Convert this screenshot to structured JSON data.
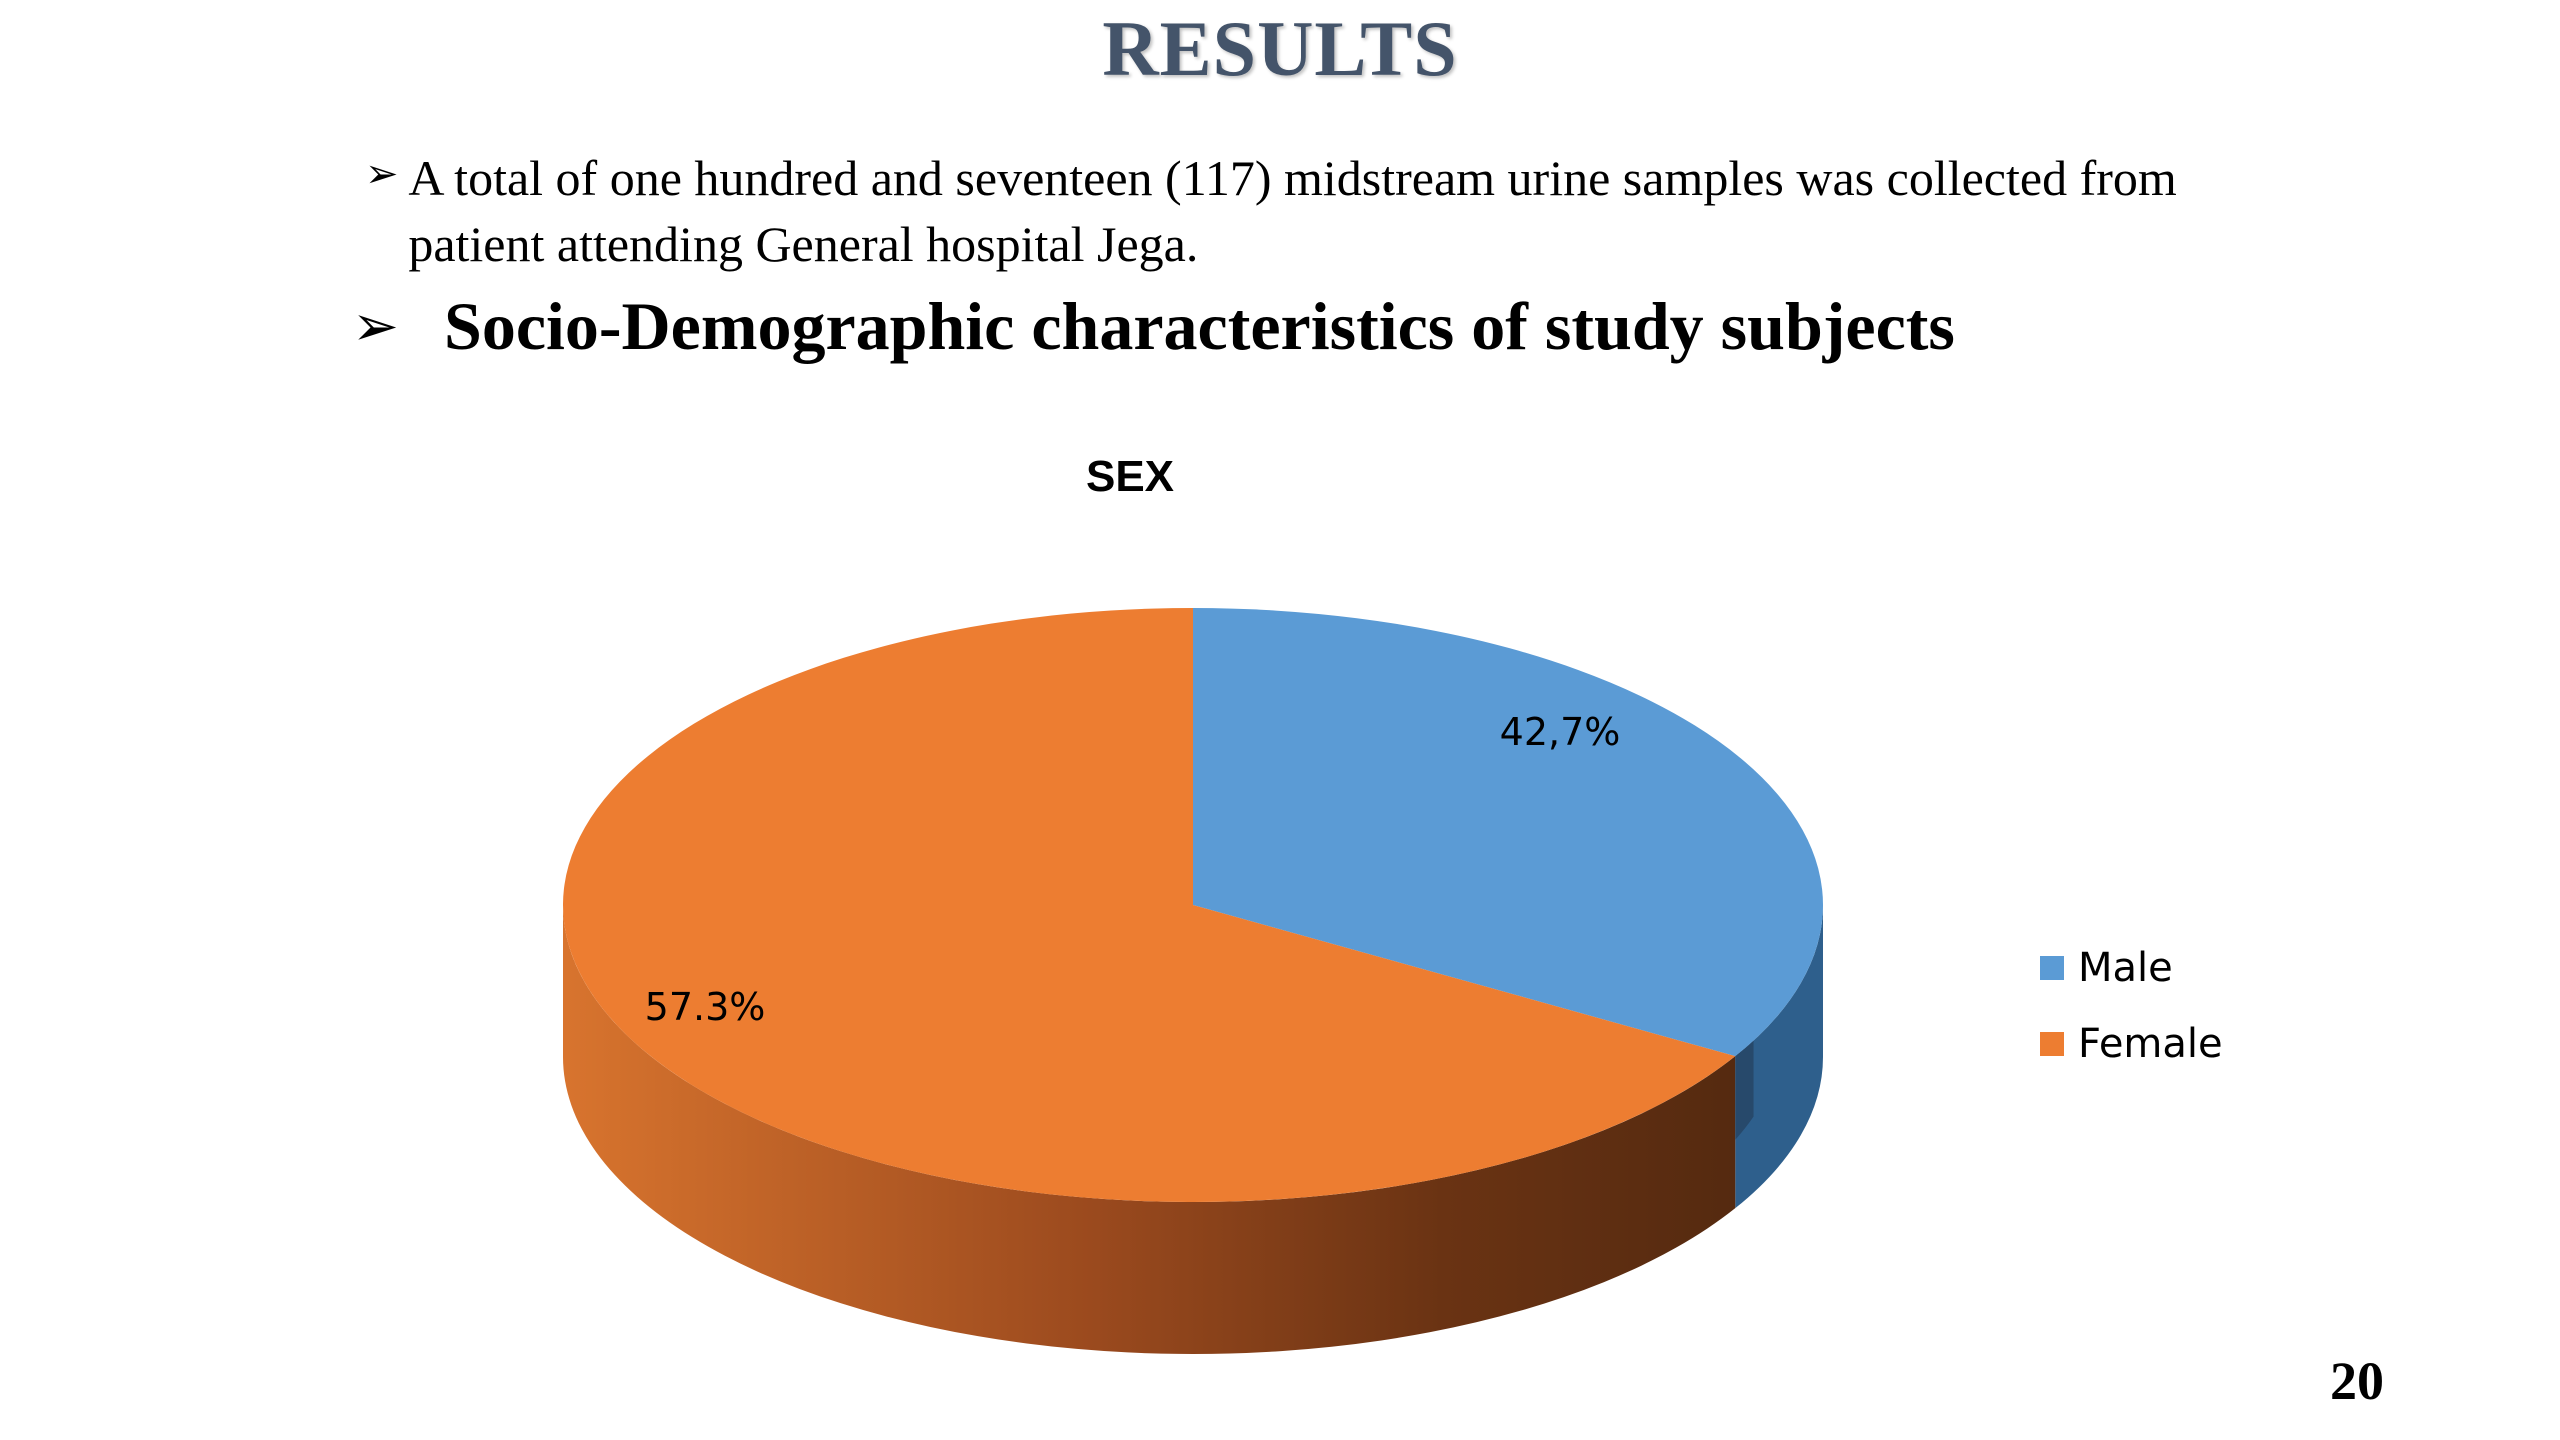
{
  "slide": {
    "title": "RESULTS",
    "bullet_1": "A total of one hundred and seventeen (117) midstream urine samples was collected from patient attending General hospital Jega.",
    "bullet_2": "Socio-Demographic characteristics of study subjects",
    "bullet_icon": "arrow-bullet-icon",
    "page_number": "20"
  },
  "chart_data": {
    "type": "pie",
    "style": "3d",
    "title": "SEX",
    "categories": [
      "Male",
      "Female"
    ],
    "values": [
      42.7,
      57.3
    ],
    "data_labels": [
      "42,7%",
      "57.3%"
    ],
    "colors": [
      "#5b9bd5",
      "#ed7d31"
    ],
    "legend": {
      "placement": "right",
      "entries": [
        "Male",
        "Female"
      ]
    }
  }
}
